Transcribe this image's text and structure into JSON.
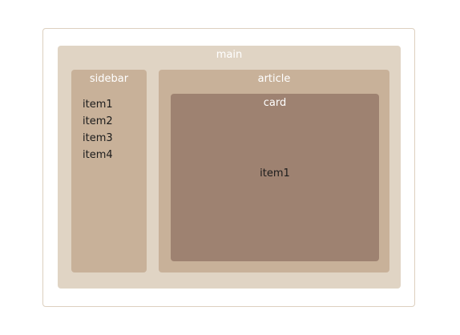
{
  "colors": {
    "outer_border": "#ddd0bf",
    "main_bg": "#e0d4c4",
    "panel_bg": "#c8b199",
    "card_bg": "#9e8271",
    "label_text": "#ffffff",
    "item_text": "#1c1c1c"
  },
  "main": {
    "title": "main"
  },
  "sidebar": {
    "title": "sidebar",
    "items": [
      "item1",
      "item2",
      "item3",
      "item4"
    ]
  },
  "article": {
    "title": "article",
    "card": {
      "title": "card",
      "item": "item1"
    }
  }
}
